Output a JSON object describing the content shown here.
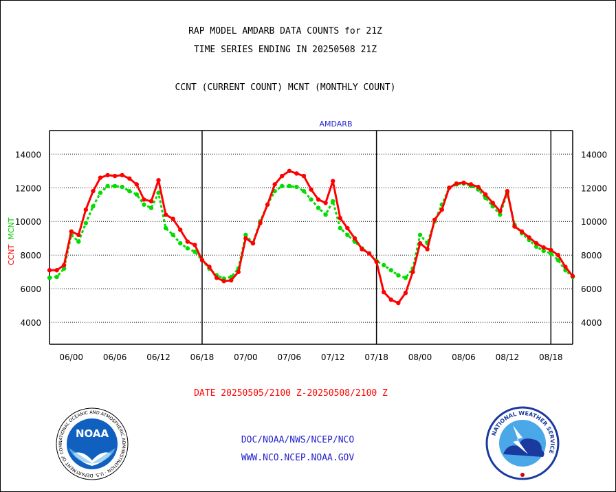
{
  "titles": {
    "line1": "RAP MODEL AMDARB DATA COUNTS for 21Z",
    "line2": "TIME SERIES ENDING IN 20250508 21Z",
    "line3": "CCNT (CURRENT COUNT) MCNT (MONTHLY COUNT)"
  },
  "footer": {
    "date_range": "DATE 20250505/2100 Z-20250508/2100 Z",
    "agency": "DOC/NOAA/NWS/NCEP/NCO",
    "url": "WWW.NCO.NCEP.NOAA.GOV"
  },
  "logos": {
    "noaa_text": "NOAA",
    "noaa_ring": "NATIONAL OCEANIC AND ATMOSPHERIC ADMINISTRATION · U.S. DEPARTMENT OF COMMERCE ·",
    "nws_ring": "NATIONAL WEATHER SERVICE"
  },
  "chart_data": {
    "type": "line",
    "title": "AMDARB",
    "ylabel_left": [
      "CCNT",
      "MCNT"
    ],
    "ylim": [
      2700,
      15400
    ],
    "yticks": [
      4000,
      6000,
      8000,
      10000,
      12000,
      14000
    ],
    "ytick_labels": [
      "4000",
      "6000",
      "8000",
      "10000",
      "12000",
      "14000"
    ],
    "grid": true,
    "xlim": [
      -3,
      69
    ],
    "x_unit": "hours from 2025-05-06 00Z (plotted at 21Z-day boundaries)",
    "xticks": [
      0,
      6,
      12,
      18,
      24,
      30,
      36,
      42,
      48,
      54,
      60,
      66
    ],
    "xtick_labels": [
      "06/00",
      "06/06",
      "06/12",
      "06/18",
      "07/00",
      "07/06",
      "07/12",
      "07/18",
      "08/00",
      "08/06",
      "08/12",
      "08/18"
    ],
    "day_dividers": [
      18,
      42,
      66
    ],
    "series": [
      {
        "name": "CCNT",
        "color": "#ff0000",
        "style": "solid",
        "x": [
          -3,
          -2,
          -1,
          0,
          1,
          2,
          3,
          4,
          5,
          6,
          7,
          8,
          9,
          10,
          11,
          12,
          13,
          14,
          15,
          16,
          17,
          18,
          19,
          20,
          21,
          22,
          23,
          24,
          25,
          26,
          27,
          28,
          29,
          30,
          31,
          32,
          33,
          34,
          35,
          36,
          37,
          38,
          39,
          40,
          41,
          42,
          43,
          44,
          45,
          46,
          47,
          48,
          49,
          50,
          51,
          52,
          53,
          54,
          55,
          56,
          57,
          58,
          59,
          60,
          61,
          62,
          63,
          64,
          65,
          66,
          67,
          68,
          69
        ],
        "y": [
          7100,
          7100,
          7400,
          9400,
          9200,
          10700,
          11800,
          12600,
          12750,
          12700,
          12750,
          12550,
          12200,
          11300,
          11200,
          12450,
          10400,
          10150,
          9500,
          8800,
          8600,
          7700,
          7300,
          6650,
          6450,
          6500,
          7000,
          9000,
          8700,
          9900,
          11000,
          12200,
          12700,
          13000,
          12850,
          12700,
          11900,
          11300,
          11100,
          12400,
          10200,
          9600,
          9000,
          8350,
          8100,
          7600,
          5800,
          5350,
          5150,
          5750,
          7000,
          8700,
          8350,
          10100,
          10700,
          12000,
          12250,
          12300,
          12200,
          12050,
          11600,
          11100,
          10600,
          11800,
          9700,
          9400,
          9050,
          8700,
          8450,
          8300,
          8000,
          7300,
          6750
        ]
      },
      {
        "name": "MCNT",
        "color": "#00dd00",
        "style": "dotted",
        "x": [
          -3,
          -2,
          -1,
          0,
          1,
          2,
          3,
          4,
          5,
          6,
          7,
          8,
          9,
          10,
          11,
          12,
          13,
          14,
          15,
          16,
          17,
          18,
          19,
          20,
          21,
          22,
          23,
          24,
          25,
          26,
          27,
          28,
          29,
          30,
          31,
          32,
          33,
          34,
          35,
          36,
          37,
          38,
          39,
          40,
          41,
          42,
          43,
          44,
          45,
          46,
          47,
          48,
          49,
          50,
          51,
          52,
          53,
          54,
          55,
          56,
          57,
          58,
          59,
          60,
          61,
          62,
          63,
          64,
          65,
          66,
          67,
          68,
          69
        ],
        "y": [
          6650,
          6700,
          7200,
          9200,
          8800,
          9900,
          10900,
          11700,
          12100,
          12100,
          12050,
          11800,
          11600,
          11000,
          10800,
          11700,
          9600,
          9200,
          8700,
          8400,
          8200,
          7700,
          7200,
          6800,
          6600,
          6700,
          7200,
          9200,
          8700,
          10000,
          11000,
          11800,
          12100,
          12100,
          12050,
          11800,
          11300,
          10800,
          10400,
          11200,
          9600,
          9200,
          8800,
          8400,
          8100,
          7650,
          7400,
          7100,
          6800,
          6650,
          7200,
          9200,
          8700,
          10000,
          11000,
          12000,
          12200,
          12250,
          12100,
          11900,
          11400,
          10900,
          10400,
          11700,
          9800,
          9300,
          8900,
          8500,
          8250,
          8100,
          7700,
          7100,
          6700
        ]
      }
    ]
  }
}
